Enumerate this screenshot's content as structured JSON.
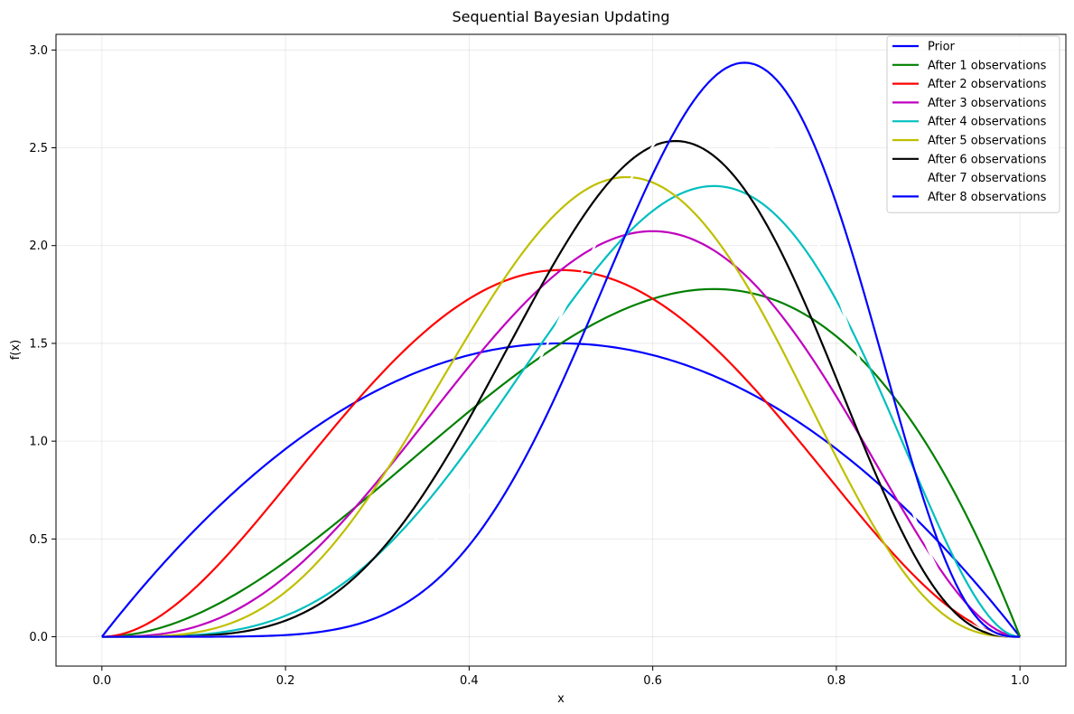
{
  "chart_data": {
    "type": "line",
    "title": "Sequential Bayesian Updating",
    "xlabel": "x",
    "ylabel": "f(x)",
    "xlim": [
      -0.05,
      1.05
    ],
    "ylim": [
      -0.15,
      3.08
    ],
    "xticks": [
      0.0,
      0.2,
      0.4,
      0.6,
      0.8,
      1.0
    ],
    "xtick_labels": [
      "0.0",
      "0.2",
      "0.4",
      "0.6",
      "0.8",
      "1.0"
    ],
    "yticks": [
      0.0,
      0.5,
      1.0,
      1.5,
      2.0,
      2.5,
      3.0
    ],
    "ytick_labels": [
      "0.0",
      "0.5",
      "1.0",
      "1.5",
      "2.0",
      "2.5",
      "3.0"
    ],
    "grid": true,
    "legend_position": "top-right",
    "series": [
      {
        "name": "Prior",
        "color": "#0000ff",
        "distribution": "beta",
        "alpha": 2,
        "beta": 2
      },
      {
        "name": "After 1 observations",
        "color": "#008000",
        "distribution": "beta",
        "alpha": 3,
        "beta": 2
      },
      {
        "name": "After 2 observations",
        "color": "#ff0000",
        "distribution": "beta",
        "alpha": 3,
        "beta": 3
      },
      {
        "name": "After 3 observations",
        "color": "#bf00bf",
        "distribution": "beta",
        "alpha": 4,
        "beta": 3
      },
      {
        "name": "After 4 observations",
        "color": "#00bfbf",
        "distribution": "beta",
        "alpha": 5,
        "beta": 3
      },
      {
        "name": "After 5 observations",
        "color": "#bfbf00",
        "distribution": "beta",
        "alpha": 5,
        "beta": 4
      },
      {
        "name": "After 6 observations",
        "color": "#000000",
        "distribution": "beta",
        "alpha": 6,
        "beta": 4
      },
      {
        "name": "After 7 observations",
        "color": "#ffffff",
        "distribution": "beta",
        "alpha": 7,
        "beta": 4
      },
      {
        "name": "After 8 observations",
        "color": "#0000ff",
        "distribution": "beta",
        "alpha": 8,
        "beta": 4
      }
    ]
  }
}
